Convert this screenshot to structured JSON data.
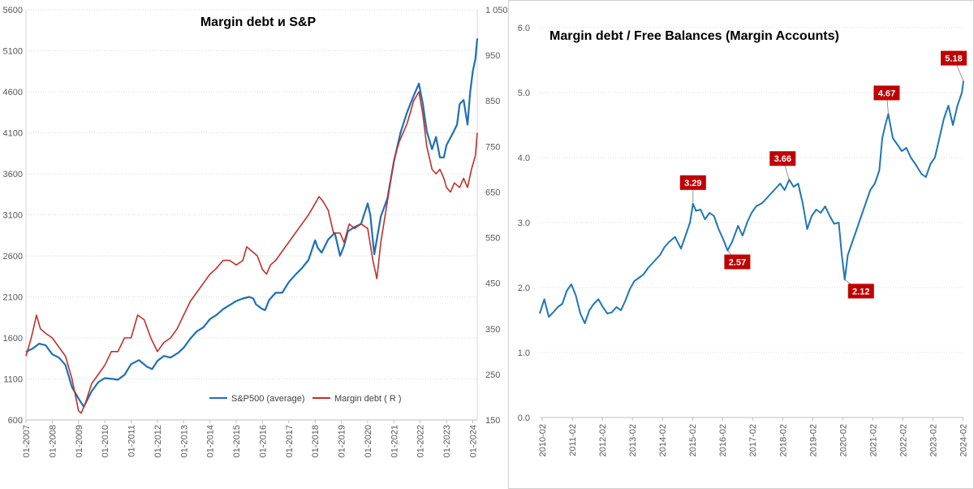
{
  "chart_data": [
    {
      "type": "line",
      "title": "Margin debt и S&P",
      "x_labels": [
        "01-2007",
        "01-2008",
        "01-2009",
        "01-2010",
        "01-2011",
        "01-2012",
        "01-2013",
        "01-2014",
        "01-2015",
        "01-2016",
        "01-2017",
        "01-2018",
        "01-2019",
        "01-2020",
        "01-2021",
        "01-2022",
        "01-2023",
        "01-2024"
      ],
      "x_range": [
        2007.0,
        2024.17
      ],
      "y_left": {
        "min": 600,
        "max": 5600,
        "ticks": [
          "600",
          "1100",
          "1600",
          "2100",
          "2600",
          "3100",
          "3600",
          "4100",
          "4600",
          "5100",
          "5600"
        ]
      },
      "y_right": {
        "min": 150,
        "max": 1050,
        "ticks": [
          "150",
          "250",
          "350",
          "450",
          "550",
          "650",
          "750",
          "850",
          "950",
          "1 050"
        ]
      },
      "legend": [
        "S&P500 (average)",
        "Margin debt ( R )"
      ],
      "series": [
        {
          "name": "S&P500 (average)",
          "axis": "left",
          "color": "#1f6fb4",
          "x": [
            2007.0,
            2007.25,
            2007.5,
            2007.75,
            2008.0,
            2008.25,
            2008.5,
            2008.75,
            2009.0,
            2009.2,
            2009.5,
            2009.75,
            2010.0,
            2010.3,
            2010.5,
            2010.75,
            2011.0,
            2011.3,
            2011.6,
            2011.8,
            2012.0,
            2012.25,
            2012.5,
            2012.8,
            2013.0,
            2013.25,
            2013.5,
            2013.75,
            2014.0,
            2014.25,
            2014.5,
            2014.75,
            2015.0,
            2015.25,
            2015.5,
            2015.65,
            2015.75,
            2016.0,
            2016.1,
            2016.25,
            2016.5,
            2016.75,
            2017.0,
            2017.25,
            2017.5,
            2017.75,
            2018.0,
            2018.1,
            2018.25,
            2018.5,
            2018.75,
            2018.95,
            2019.1,
            2019.25,
            2019.5,
            2019.75,
            2020.0,
            2020.1,
            2020.25,
            2020.5,
            2020.75,
            2021.0,
            2021.25,
            2021.5,
            2021.75,
            2021.95,
            2022.1,
            2022.25,
            2022.45,
            2022.6,
            2022.75,
            2022.9,
            2023.0,
            2023.25,
            2023.4,
            2023.5,
            2023.65,
            2023.8,
            2023.9,
            2024.0,
            2024.1,
            2024.17
          ],
          "y": [
            1430,
            1470,
            1530,
            1510,
            1400,
            1360,
            1270,
            1000,
            860,
            760,
            950,
            1060,
            1110,
            1100,
            1090,
            1150,
            1280,
            1330,
            1250,
            1220,
            1320,
            1380,
            1360,
            1420,
            1480,
            1590,
            1680,
            1730,
            1830,
            1880,
            1950,
            2000,
            2050,
            2080,
            2100,
            2080,
            2010,
            1950,
            1940,
            2060,
            2150,
            2150,
            2280,
            2370,
            2450,
            2550,
            2790,
            2700,
            2640,
            2800,
            2880,
            2600,
            2720,
            2900,
            2950,
            2990,
            3240,
            3100,
            2620,
            3080,
            3300,
            3750,
            4100,
            4350,
            4550,
            4700,
            4450,
            4120,
            3900,
            4050,
            3800,
            3800,
            3950,
            4100,
            4200,
            4450,
            4500,
            4200,
            4600,
            4850,
            5000,
            5250
          ]
        },
        {
          "name": "Margin debt ( R )",
          "axis": "right",
          "color": "#c0302b",
          "x": [
            2007.0,
            2007.2,
            2007.4,
            2007.55,
            2007.75,
            2008.0,
            2008.25,
            2008.5,
            2008.75,
            2009.0,
            2009.1,
            2009.25,
            2009.5,
            2009.75,
            2010.0,
            2010.25,
            2010.5,
            2010.75,
            2011.0,
            2011.25,
            2011.5,
            2011.75,
            2012.0,
            2012.25,
            2012.5,
            2012.75,
            2013.0,
            2013.25,
            2013.5,
            2013.75,
            2014.0,
            2014.2,
            2014.5,
            2014.75,
            2015.0,
            2015.25,
            2015.4,
            2015.6,
            2015.8,
            2016.0,
            2016.15,
            2016.3,
            2016.5,
            2016.75,
            2017.0,
            2017.25,
            2017.5,
            2017.75,
            2017.95,
            2018.15,
            2018.3,
            2018.5,
            2018.7,
            2018.95,
            2019.1,
            2019.3,
            2019.5,
            2019.75,
            2020.0,
            2020.2,
            2020.35,
            2020.5,
            2020.75,
            2021.0,
            2021.2,
            2021.5,
            2021.75,
            2021.95,
            2022.1,
            2022.25,
            2022.45,
            2022.6,
            2022.75,
            2022.9,
            2023.0,
            2023.15,
            2023.3,
            2023.5,
            2023.65,
            2023.8,
            2023.95,
            2024.1,
            2024.17
          ],
          "y": [
            290,
            330,
            380,
            350,
            340,
            330,
            310,
            290,
            240,
            170,
            165,
            185,
            230,
            250,
            270,
            300,
            300,
            330,
            330,
            380,
            370,
            330,
            300,
            320,
            330,
            350,
            380,
            410,
            430,
            450,
            470,
            480,
            500,
            500,
            490,
            500,
            530,
            520,
            510,
            480,
            470,
            490,
            500,
            520,
            540,
            560,
            580,
            600,
            620,
            640,
            630,
            610,
            560,
            560,
            540,
            580,
            570,
            580,
            570,
            500,
            460,
            540,
            630,
            720,
            760,
            800,
            850,
            870,
            820,
            750,
            700,
            690,
            700,
            680,
            660,
            650,
            670,
            660,
            680,
            660,
            700,
            730,
            780
          ]
        }
      ]
    },
    {
      "type": "line",
      "title": "Margin debt / Free Balances (Margin Accounts)",
      "x_labels": [
        "2010-02",
        "2011-02",
        "2012-02",
        "2013-02",
        "2014-02",
        "2015-02",
        "2016-02",
        "2017-02",
        "2018-02",
        "2019-02",
        "2020-02",
        "2021-02",
        "2022-02",
        "2023-02",
        "2024-02"
      ],
      "x_range": [
        2010.0,
        2024.1
      ],
      "y_axis": {
        "min": 0.0,
        "max": 6.0,
        "ticks": [
          "0.0",
          "1.0",
          "2.0",
          "3.0",
          "4.0",
          "5.0",
          "6.0"
        ]
      },
      "annotations": [
        "3.29",
        "2.57",
        "3.66",
        "2.12",
        "4.67",
        "5.18"
      ],
      "series": [
        {
          "name": "Margin debt / Free Balances",
          "color": "#1f77b4",
          "x": [
            2010.0,
            2010.15,
            2010.3,
            2010.45,
            2010.6,
            2010.75,
            2010.9,
            2011.05,
            2011.2,
            2011.35,
            2011.5,
            2011.65,
            2011.8,
            2011.95,
            2012.1,
            2012.25,
            2012.4,
            2012.55,
            2012.7,
            2012.85,
            2013.0,
            2013.15,
            2013.3,
            2013.45,
            2013.6,
            2013.8,
            2014.0,
            2014.15,
            2014.3,
            2014.5,
            2014.7,
            2014.85,
            2015.0,
            2015.1,
            2015.2,
            2015.35,
            2015.5,
            2015.65,
            2015.8,
            2015.95,
            2016.1,
            2016.25,
            2016.4,
            2016.6,
            2016.75,
            2016.9,
            2017.05,
            2017.2,
            2017.4,
            2017.6,
            2017.8,
            2018.0,
            2018.15,
            2018.3,
            2018.45,
            2018.6,
            2018.75,
            2018.9,
            2019.05,
            2019.2,
            2019.35,
            2019.5,
            2019.65,
            2019.8,
            2019.95,
            2020.05,
            2020.15,
            2020.25,
            2020.4,
            2020.55,
            2020.7,
            2020.85,
            2021.0,
            2021.15,
            2021.3,
            2021.4,
            2021.5,
            2021.6,
            2021.75,
            2021.9,
            2022.05,
            2022.2,
            2022.35,
            2022.5,
            2022.7,
            2022.85,
            2023.0,
            2023.15,
            2023.3,
            2023.45,
            2023.6,
            2023.75,
            2023.9,
            2024.05,
            2024.1
          ],
          "y": [
            1.6,
            1.82,
            1.55,
            1.62,
            1.7,
            1.75,
            1.95,
            2.05,
            1.88,
            1.6,
            1.45,
            1.65,
            1.75,
            1.82,
            1.7,
            1.6,
            1.62,
            1.7,
            1.65,
            1.8,
            1.98,
            2.1,
            2.15,
            2.2,
            2.3,
            2.4,
            2.5,
            2.62,
            2.7,
            2.78,
            2.6,
            2.8,
            3.0,
            3.29,
            3.18,
            3.2,
            3.05,
            3.15,
            3.1,
            2.9,
            2.75,
            2.57,
            2.7,
            2.95,
            2.8,
            3.0,
            3.15,
            3.25,
            3.3,
            3.4,
            3.5,
            3.6,
            3.5,
            3.66,
            3.55,
            3.6,
            3.3,
            2.9,
            3.1,
            3.2,
            3.15,
            3.25,
            3.1,
            2.98,
            3.0,
            2.5,
            2.12,
            2.5,
            2.7,
            2.9,
            3.1,
            3.3,
            3.5,
            3.6,
            3.8,
            4.3,
            4.5,
            4.67,
            4.3,
            4.2,
            4.1,
            4.15,
            4.0,
            3.9,
            3.75,
            3.7,
            3.9,
            4.0,
            4.3,
            4.6,
            4.8,
            4.5,
            4.8,
            5.0,
            5.18
          ]
        }
      ]
    }
  ]
}
